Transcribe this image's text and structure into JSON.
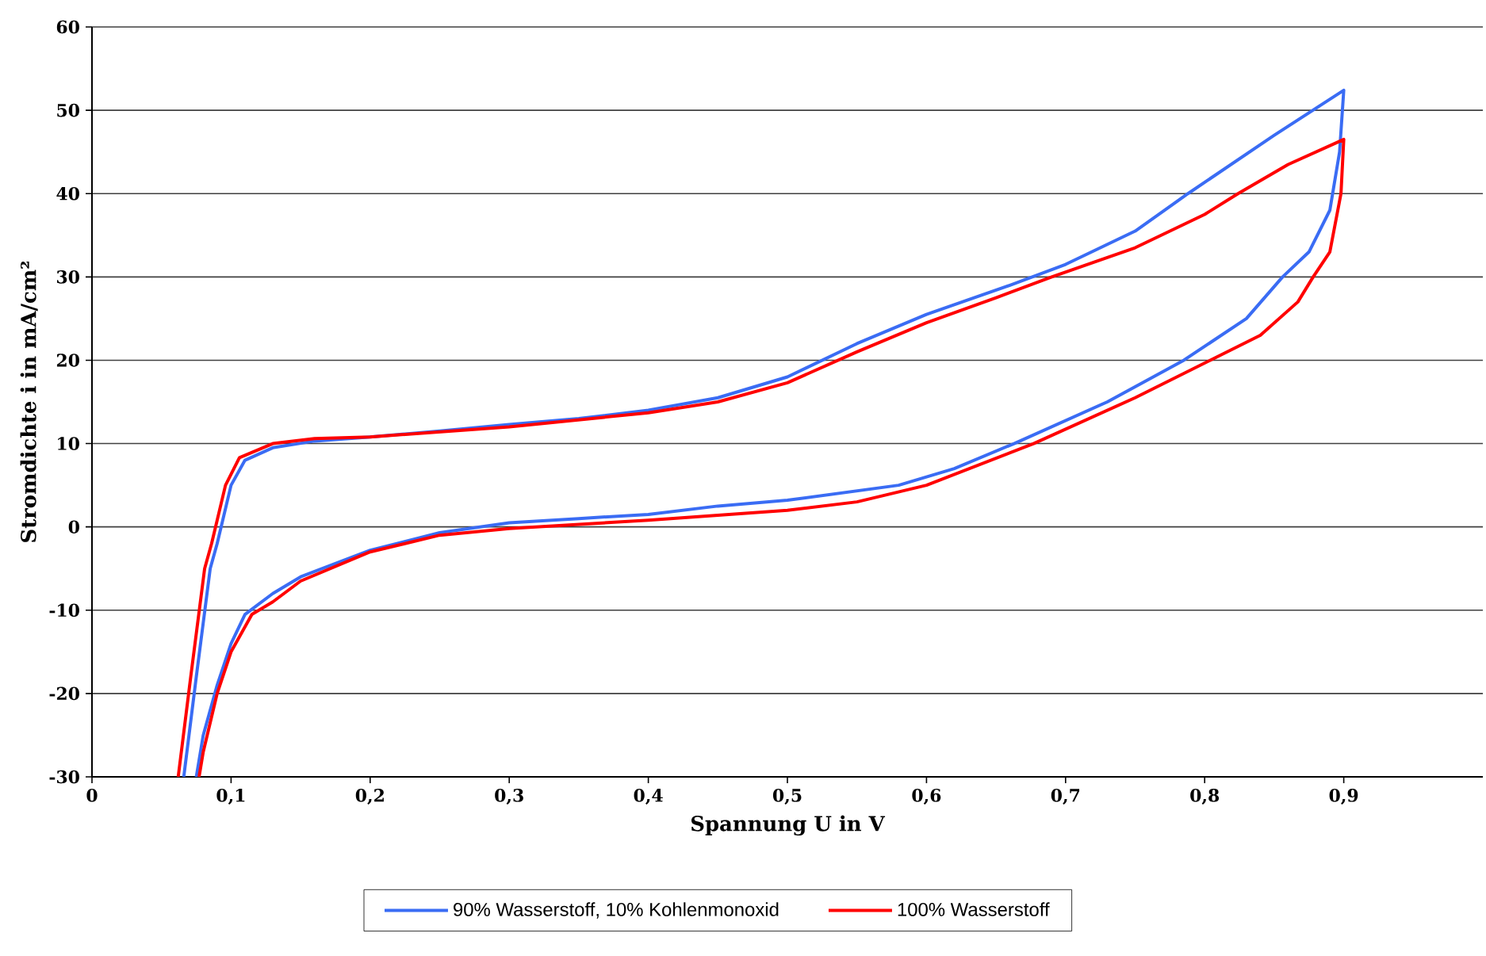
{
  "chart_data": {
    "type": "line",
    "xlabel": "Spannung U in V",
    "ylabel": "Stromdichte i in mA/cm²",
    "xlim": [
      0,
      1
    ],
    "ylim": [
      -30,
      60
    ],
    "xticks": [
      0,
      {
        "value": 0.1,
        "label": "0,1"
      },
      {
        "value": 0.2,
        "label": "0,2"
      },
      {
        "value": 0.3,
        "label": "0,3"
      },
      {
        "value": 0.4,
        "label": "0,4"
      },
      {
        "value": 0.5,
        "label": "0,5"
      },
      {
        "value": 0.6,
        "label": "0,6"
      },
      {
        "value": 0.7,
        "label": "0,7"
      },
      {
        "value": 0.8,
        "label": "0,8"
      },
      {
        "value": 0.9,
        "label": "0,9"
      }
    ],
    "yticks": [
      -30,
      -20,
      -10,
      0,
      10,
      20,
      30,
      40,
      50,
      60
    ],
    "grid": "y",
    "legend": "bottom",
    "marker": "none",
    "line_style": "solid",
    "series": [
      {
        "name": "90% Wasserstoff, 10% Kohlenmonoxid",
        "color": "#3a6cf4",
        "x": [
          0.066,
          0.075,
          0.085,
          0.09,
          0.1,
          0.11,
          0.13,
          0.16,
          0.2,
          0.25,
          0.3,
          0.35,
          0.4,
          0.45,
          0.5,
          0.55,
          0.6,
          0.66,
          0.7,
          0.75,
          0.788,
          0.85,
          0.9,
          0.897,
          0.89,
          0.875,
          0.856,
          0.83,
          0.785,
          0.73,
          0.663,
          0.62,
          0.58,
          0.5,
          0.45,
          0.4,
          0.35,
          0.3,
          0.25,
          0.2,
          0.15,
          0.13,
          0.11,
          0.1,
          0.09,
          0.08,
          0.075
        ],
        "values": [
          -30,
          -18,
          -5,
          -2,
          5,
          8,
          9.5,
          10.3,
          10.8,
          11.5,
          12.3,
          13,
          14,
          15.5,
          18,
          22,
          25.5,
          29,
          31.5,
          35.5,
          40,
          47,
          52.4,
          45,
          38,
          33,
          30,
          25,
          20,
          15,
          10,
          7,
          5,
          3.2,
          2.5,
          1.5,
          1,
          0.5,
          -0.7,
          -2.8,
          -6,
          -8,
          -10.5,
          -14,
          -19,
          -25,
          -30
        ]
      },
      {
        "name": "100% Wasserstoff",
        "color": "#ff0000",
        "x": [
          0.062,
          0.071,
          0.081,
          0.086,
          0.096,
          0.106,
          0.13,
          0.16,
          0.2,
          0.3,
          0.4,
          0.45,
          0.5,
          0.55,
          0.6,
          0.65,
          0.69,
          0.75,
          0.8,
          0.824,
          0.86,
          0.9,
          0.898,
          0.89,
          0.878,
          0.867,
          0.84,
          0.804,
          0.75,
          0.677,
          0.6,
          0.55,
          0.5,
          0.4,
          0.3,
          0.25,
          0.2,
          0.15,
          0.13,
          0.115,
          0.1,
          0.09,
          0.08,
          0.077
        ],
        "values": [
          -30,
          -18,
          -5,
          -2,
          5,
          8.3,
          10,
          10.6,
          10.8,
          12,
          13.7,
          15,
          17.3,
          21,
          24.5,
          27.5,
          30,
          33.5,
          37.5,
          40,
          43.5,
          46.5,
          40,
          33,
          30,
          27,
          23,
          20,
          15.5,
          10,
          5,
          3,
          2,
          0.8,
          -0.2,
          -1,
          -3,
          -6.5,
          -9,
          -10.5,
          -15,
          -20,
          -27,
          -30
        ]
      }
    ]
  }
}
